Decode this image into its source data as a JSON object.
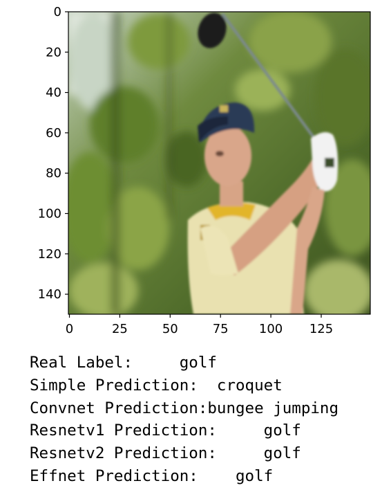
{
  "image_plot": {
    "subject": "golfer mid-swing holding club over shoulder, white cap, yellow-and-white shirt, green blurred trees in background",
    "axes": {
      "x_ticks": [
        "0",
        "25",
        "50",
        "75",
        "100",
        "125"
      ],
      "y_ticks": [
        "0",
        "20",
        "40",
        "60",
        "80",
        "100",
        "120",
        "140"
      ]
    }
  },
  "output_lines": [
    "Real Label:     golf",
    "Simple Prediction:  croquet",
    "Convnet Prediction:bungee jumping",
    "Resnetv1 Prediction:     golf",
    "Resnetv2 Prediction:     golf",
    "Effnet Prediction:    golf"
  ]
}
